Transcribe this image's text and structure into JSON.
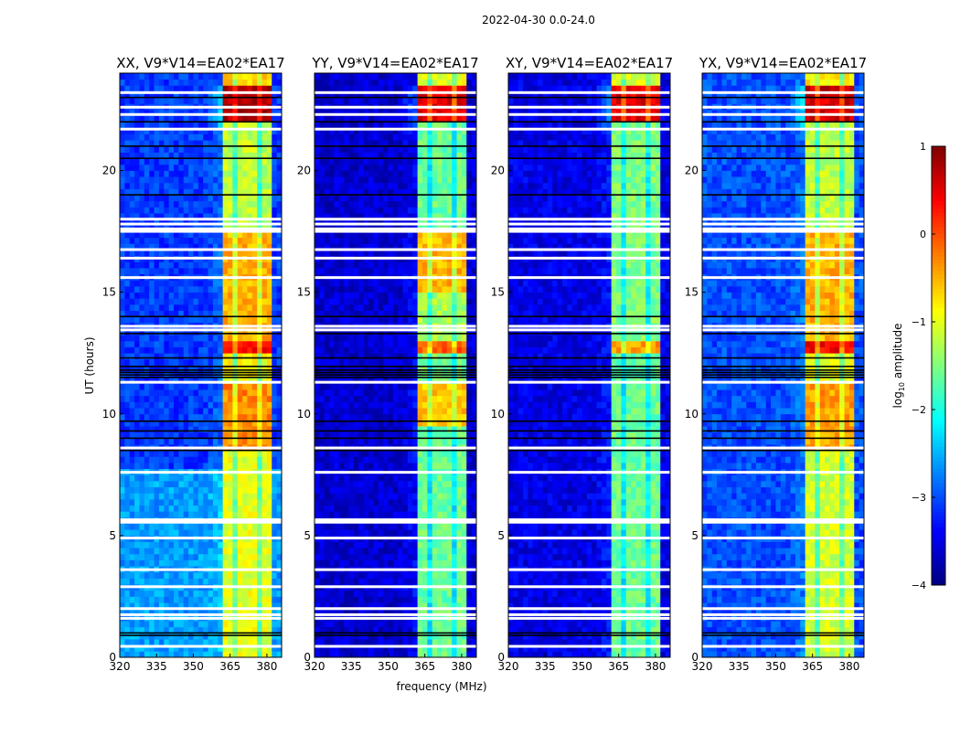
{
  "chart_data": {
    "type": "heatmap",
    "title": "2022-04-30 0.0-24.0",
    "xlabel": "frequency (MHz)",
    "ylabel": "UT (hours)",
    "xlim": [
      320,
      386
    ],
    "ylim": [
      0,
      24
    ],
    "xticks": [
      "320",
      "335",
      "350",
      "365",
      "380"
    ],
    "yticks": [
      "0",
      "5",
      "10",
      "15",
      "20"
    ],
    "colorbar": {
      "label": "log10 amplitude",
      "label_main": "log",
      "label_sub": "10",
      "label_rest": " amplitude",
      "range": [
        -4,
        1
      ],
      "ticks": [
        "1",
        "0",
        "−1",
        "−2",
        "−3",
        "−4"
      ],
      "colormap": "jet"
    },
    "band_edges_mhz": [
      362,
      367,
      372,
      377,
      382
    ],
    "white_gaps_hours": [
      0.45,
      1.6,
      1.75,
      2.0,
      2.9,
      3.6,
      4.9,
      5.55,
      5.65,
      7.6,
      8.6,
      11.3,
      13.45,
      13.6,
      15.6,
      16.4,
      16.75,
      17.5,
      17.6,
      17.8,
      18.0,
      21.7,
      22.3,
      22.6,
      23.2
    ],
    "flagged_hours": [
      0.9,
      1.0,
      8.5,
      9.0,
      9.3,
      9.7,
      11.5,
      11.6,
      11.7,
      11.8,
      11.95,
      12.3,
      13.3,
      14.0,
      19.0,
      20.5,
      21.0,
      22.0,
      23.0
    ],
    "panels": [
      {
        "title": "XX, V9*V14=EA02*EA17",
        "background": [
          {
            "t0": 0,
            "t1": 7.6,
            "v": -2.6
          },
          {
            "t0": 7.6,
            "t1": 24,
            "v": -3.1
          }
        ],
        "band": [
          {
            "t0": 0,
            "t1": 8.3,
            "v": -1.0
          },
          {
            "t0": 8.3,
            "t1": 11.2,
            "v": -0.3
          },
          {
            "t0": 11.2,
            "t1": 12.4,
            "v": -0.9
          },
          {
            "t0": 12.4,
            "t1": 13.0,
            "v": 0.4
          },
          {
            "t0": 13.0,
            "t1": 17.4,
            "v": -0.5
          },
          {
            "t0": 17.4,
            "t1": 22.0,
            "v": -1.2
          },
          {
            "t0": 22.0,
            "t1": 23.3,
            "v": 0.8
          },
          {
            "t0": 23.3,
            "t1": 24,
            "v": -0.7
          }
        ]
      },
      {
        "title": "YY, V9*V14=EA02*EA17",
        "background": [
          {
            "t0": 0,
            "t1": 24,
            "v": -3.6
          }
        ],
        "band": [
          {
            "t0": 0,
            "t1": 9.5,
            "v": -1.6
          },
          {
            "t0": 9.5,
            "t1": 11.2,
            "v": -0.6
          },
          {
            "t0": 11.2,
            "t1": 12.4,
            "v": -1.5
          },
          {
            "t0": 12.4,
            "t1": 13.0,
            "v": -0.1
          },
          {
            "t0": 13.0,
            "t1": 15.0,
            "v": -1.3
          },
          {
            "t0": 15.0,
            "t1": 17.4,
            "v": -0.5
          },
          {
            "t0": 17.4,
            "t1": 22.0,
            "v": -1.6
          },
          {
            "t0": 22.0,
            "t1": 23.3,
            "v": 0.5
          },
          {
            "t0": 23.3,
            "t1": 24,
            "v": -1.0
          }
        ]
      },
      {
        "title": "XY, V9*V14=EA02*EA17",
        "background": [
          {
            "t0": 0,
            "t1": 24,
            "v": -3.5
          }
        ],
        "band": [
          {
            "t0": 0,
            "t1": 11.2,
            "v": -1.6
          },
          {
            "t0": 11.2,
            "t1": 12.4,
            "v": -1.7
          },
          {
            "t0": 12.4,
            "t1": 13.0,
            "v": -0.4
          },
          {
            "t0": 13.0,
            "t1": 22.0,
            "v": -1.5
          },
          {
            "t0": 22.0,
            "t1": 23.3,
            "v": 0.5
          },
          {
            "t0": 23.3,
            "t1": 24,
            "v": -1.0
          }
        ]
      },
      {
        "title": "YX, V9*V14=EA02*EA17",
        "background": [
          {
            "t0": 0,
            "t1": 24,
            "v": -3.0
          }
        ],
        "band": [
          {
            "t0": 0,
            "t1": 8.3,
            "v": -1.1
          },
          {
            "t0": 8.3,
            "t1": 11.2,
            "v": -0.4
          },
          {
            "t0": 11.2,
            "t1": 12.4,
            "v": -1.0
          },
          {
            "t0": 12.4,
            "t1": 13.0,
            "v": 0.4
          },
          {
            "t0": 13.0,
            "t1": 17.4,
            "v": -0.5
          },
          {
            "t0": 17.4,
            "t1": 22.0,
            "v": -1.2
          },
          {
            "t0": 22.0,
            "t1": 23.3,
            "v": 0.6
          },
          {
            "t0": 23.3,
            "t1": 24,
            "v": -0.8
          }
        ]
      }
    ]
  }
}
